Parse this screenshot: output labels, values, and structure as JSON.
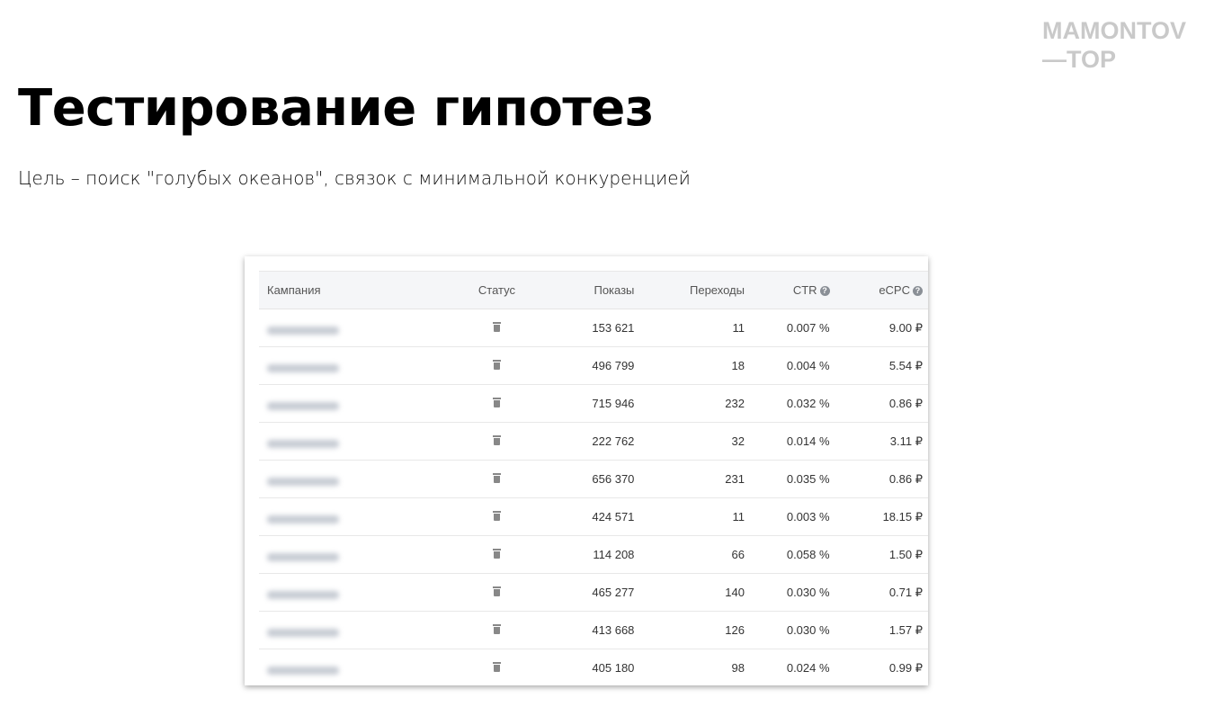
{
  "logo": {
    "line1": "MAMONTOV",
    "line2": "—TOP"
  },
  "title": "Тестирование гипотез",
  "subtitle": "Цель – поиск \"голубых океанов\", связок с минимальной конкуренцией",
  "table": {
    "headers": [
      "Кампания",
      "Статус",
      "Показы",
      "Переходы",
      "CTR",
      "eCPC"
    ],
    "help_icon": "?",
    "status_icon": "trash-icon",
    "rows": [
      {
        "impressions": "153 621",
        "clicks": "11",
        "ctr": "0.007 %",
        "ecpc": "9.00 ₽"
      },
      {
        "impressions": "496 799",
        "clicks": "18",
        "ctr": "0.004 %",
        "ecpc": "5.54 ₽"
      },
      {
        "impressions": "715 946",
        "clicks": "232",
        "ctr": "0.032 %",
        "ecpc": "0.86 ₽"
      },
      {
        "impressions": "222 762",
        "clicks": "32",
        "ctr": "0.014 %",
        "ecpc": "3.11 ₽"
      },
      {
        "impressions": "656 370",
        "clicks": "231",
        "ctr": "0.035 %",
        "ecpc": "0.86 ₽"
      },
      {
        "impressions": "424 571",
        "clicks": "11",
        "ctr": "0.003 %",
        "ecpc": "18.15 ₽"
      },
      {
        "impressions": "114 208",
        "clicks": "66",
        "ctr": "0.058 %",
        "ecpc": "1.50 ₽"
      },
      {
        "impressions": "465 277",
        "clicks": "140",
        "ctr": "0.030 %",
        "ecpc": "0.71 ₽"
      },
      {
        "impressions": "413 668",
        "clicks": "126",
        "ctr": "0.030 %",
        "ecpc": "1.57 ₽"
      },
      {
        "impressions": "405 180",
        "clicks": "98",
        "ctr": "0.024 %",
        "ecpc": "0.99 ₽"
      }
    ]
  }
}
